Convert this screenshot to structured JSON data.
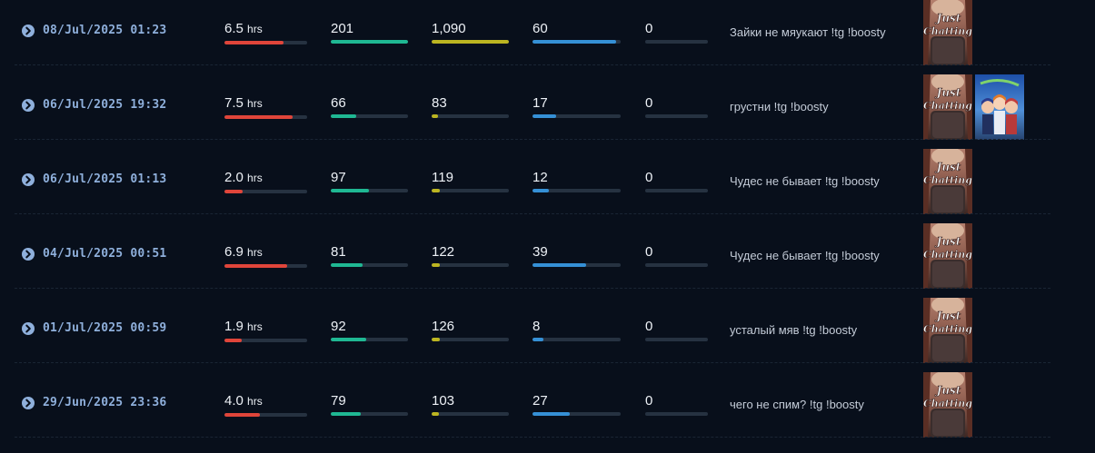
{
  "hours_unit": "hrs",
  "colors": {
    "hours": "#e0453a",
    "avg_viewers": "#1fb893",
    "peak_viewers": "#bcb521",
    "followers": "#3590d6",
    "extra": "#3590d6",
    "date": "#8fb0dc",
    "background": "#080f1b"
  },
  "games": {
    "just_chatting": {
      "art_text_line1": "Just",
      "art_text_line2": "Chatting",
      "icon": "just-chatting-cover-icon"
    },
    "anime_game": {
      "icon": "anime-game-cover-icon"
    }
  },
  "streams": [
    {
      "date": "08/Jul/2025 01:23",
      "hours": "6.5",
      "hours_fill": 0.71,
      "avg_viewers": "201",
      "avg_fill": 1.0,
      "peak_viewers": "1,090",
      "peak_fill": 1.0,
      "followers": "60",
      "followers_fill": 0.95,
      "extra": "0",
      "extra_fill": 0,
      "title": "Зайки не мяукают !tg !boosty",
      "games": [
        "just_chatting"
      ]
    },
    {
      "date": "06/Jul/2025 19:32",
      "hours": "7.5",
      "hours_fill": 0.82,
      "avg_viewers": "66",
      "avg_fill": 0.33,
      "peak_viewers": "83",
      "peak_fill": 0.08,
      "followers": "17",
      "followers_fill": 0.27,
      "extra": "0",
      "extra_fill": 0,
      "title": "грустни !tg !boosty",
      "games": [
        "just_chatting",
        "anime_game"
      ]
    },
    {
      "date": "06/Jul/2025 01:13",
      "hours": "2.0",
      "hours_fill": 0.22,
      "avg_viewers": "97",
      "avg_fill": 0.49,
      "peak_viewers": "119",
      "peak_fill": 0.11,
      "followers": "12",
      "followers_fill": 0.19,
      "extra": "0",
      "extra_fill": 0,
      "title": "Чудес не бывает !tg !boosty",
      "games": [
        "just_chatting"
      ]
    },
    {
      "date": "04/Jul/2025 00:51",
      "hours": "6.9",
      "hours_fill": 0.76,
      "avg_viewers": "81",
      "avg_fill": 0.41,
      "peak_viewers": "122",
      "peak_fill": 0.11,
      "followers": "39",
      "followers_fill": 0.61,
      "extra": "0",
      "extra_fill": 0,
      "title": "Чудес не бывает !tg !boosty",
      "games": [
        "just_chatting"
      ]
    },
    {
      "date": "01/Jul/2025 00:59",
      "hours": "1.9",
      "hours_fill": 0.21,
      "avg_viewers": "92",
      "avg_fill": 0.46,
      "peak_viewers": "126",
      "peak_fill": 0.11,
      "followers": "8",
      "followers_fill": 0.12,
      "extra": "0",
      "extra_fill": 0,
      "title": "усталый мяв !tg !boosty",
      "games": [
        "just_chatting"
      ]
    },
    {
      "date": "29/Jun/2025 23:36",
      "hours": "4.0",
      "hours_fill": 0.43,
      "avg_viewers": "79",
      "avg_fill": 0.39,
      "peak_viewers": "103",
      "peak_fill": 0.09,
      "followers": "27",
      "followers_fill": 0.42,
      "extra": "0",
      "extra_fill": 0,
      "title": "чего не спим? !tg !boosty",
      "games": [
        "just_chatting"
      ]
    }
  ]
}
